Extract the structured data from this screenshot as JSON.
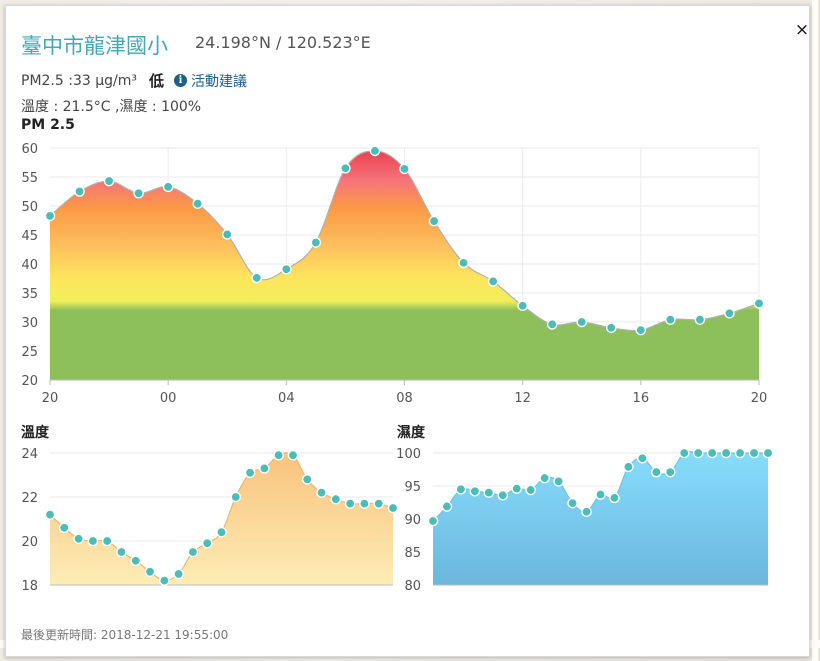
{
  "station": {
    "name": "臺中市龍津國小",
    "coords": "24.198°N / 120.523°E"
  },
  "pm_line": {
    "label": "PM2.5 :33 μg/m³",
    "level": "低",
    "info_icon": "info-icon",
    "advice_link": "活動建議"
  },
  "weather_line": "溫度 : 21.5°C ,濕度 : 100%",
  "updated": "最後更新時間: 2018-12-21 19:55:00",
  "close_label": "×",
  "colors": {
    "accent": "#43a7b6",
    "point": "#4cbcb6"
  },
  "charts": {
    "pm25": {
      "title": "PM 2.5",
      "chart_data": {
        "type": "area",
        "x_tick_labels": [
          "20",
          "00",
          "04",
          "08",
          "12",
          "16",
          "20"
        ],
        "y_ticks": [
          20,
          25,
          30,
          35,
          40,
          45,
          50,
          55,
          60
        ],
        "ylim": [
          20,
          60
        ],
        "values": [
          48.3,
          52.5,
          54.3,
          52.2,
          53.3,
          50.4,
          45.1,
          37.6,
          39.1,
          43.7,
          56.5,
          59.5,
          56.4,
          47.4,
          40.2,
          37.0,
          32.8,
          29.6,
          30.0,
          29.0,
          28.6,
          30.4,
          30.4,
          31.5,
          33.2
        ]
      }
    },
    "temp": {
      "title": "溫度",
      "chart_data": {
        "type": "area",
        "y_ticks": [
          18,
          20,
          22,
          24
        ],
        "ylim": [
          18,
          24
        ],
        "values": [
          21.2,
          20.6,
          20.1,
          20.0,
          20.0,
          19.5,
          19.1,
          18.6,
          18.2,
          18.5,
          19.5,
          19.9,
          20.4,
          22.0,
          23.1,
          23.3,
          23.9,
          23.9,
          22.8,
          22.2,
          21.9,
          21.7,
          21.7,
          21.7,
          21.5
        ],
        "fill": "#f8cb86"
      }
    },
    "humidity": {
      "title": "濕度",
      "chart_data": {
        "type": "area",
        "y_ticks": [
          80,
          85,
          90,
          95,
          100
        ],
        "ylim": [
          80,
          100
        ],
        "values": [
          89.7,
          91.9,
          94.5,
          94.2,
          94.0,
          93.6,
          94.6,
          94.4,
          96.2,
          95.7,
          92.4,
          91.1,
          93.7,
          93.2,
          97.9,
          99.2,
          97.1,
          97.1,
          100,
          100,
          100,
          100,
          100,
          100,
          100
        ],
        "fill": "#7fd4f2"
      }
    }
  }
}
